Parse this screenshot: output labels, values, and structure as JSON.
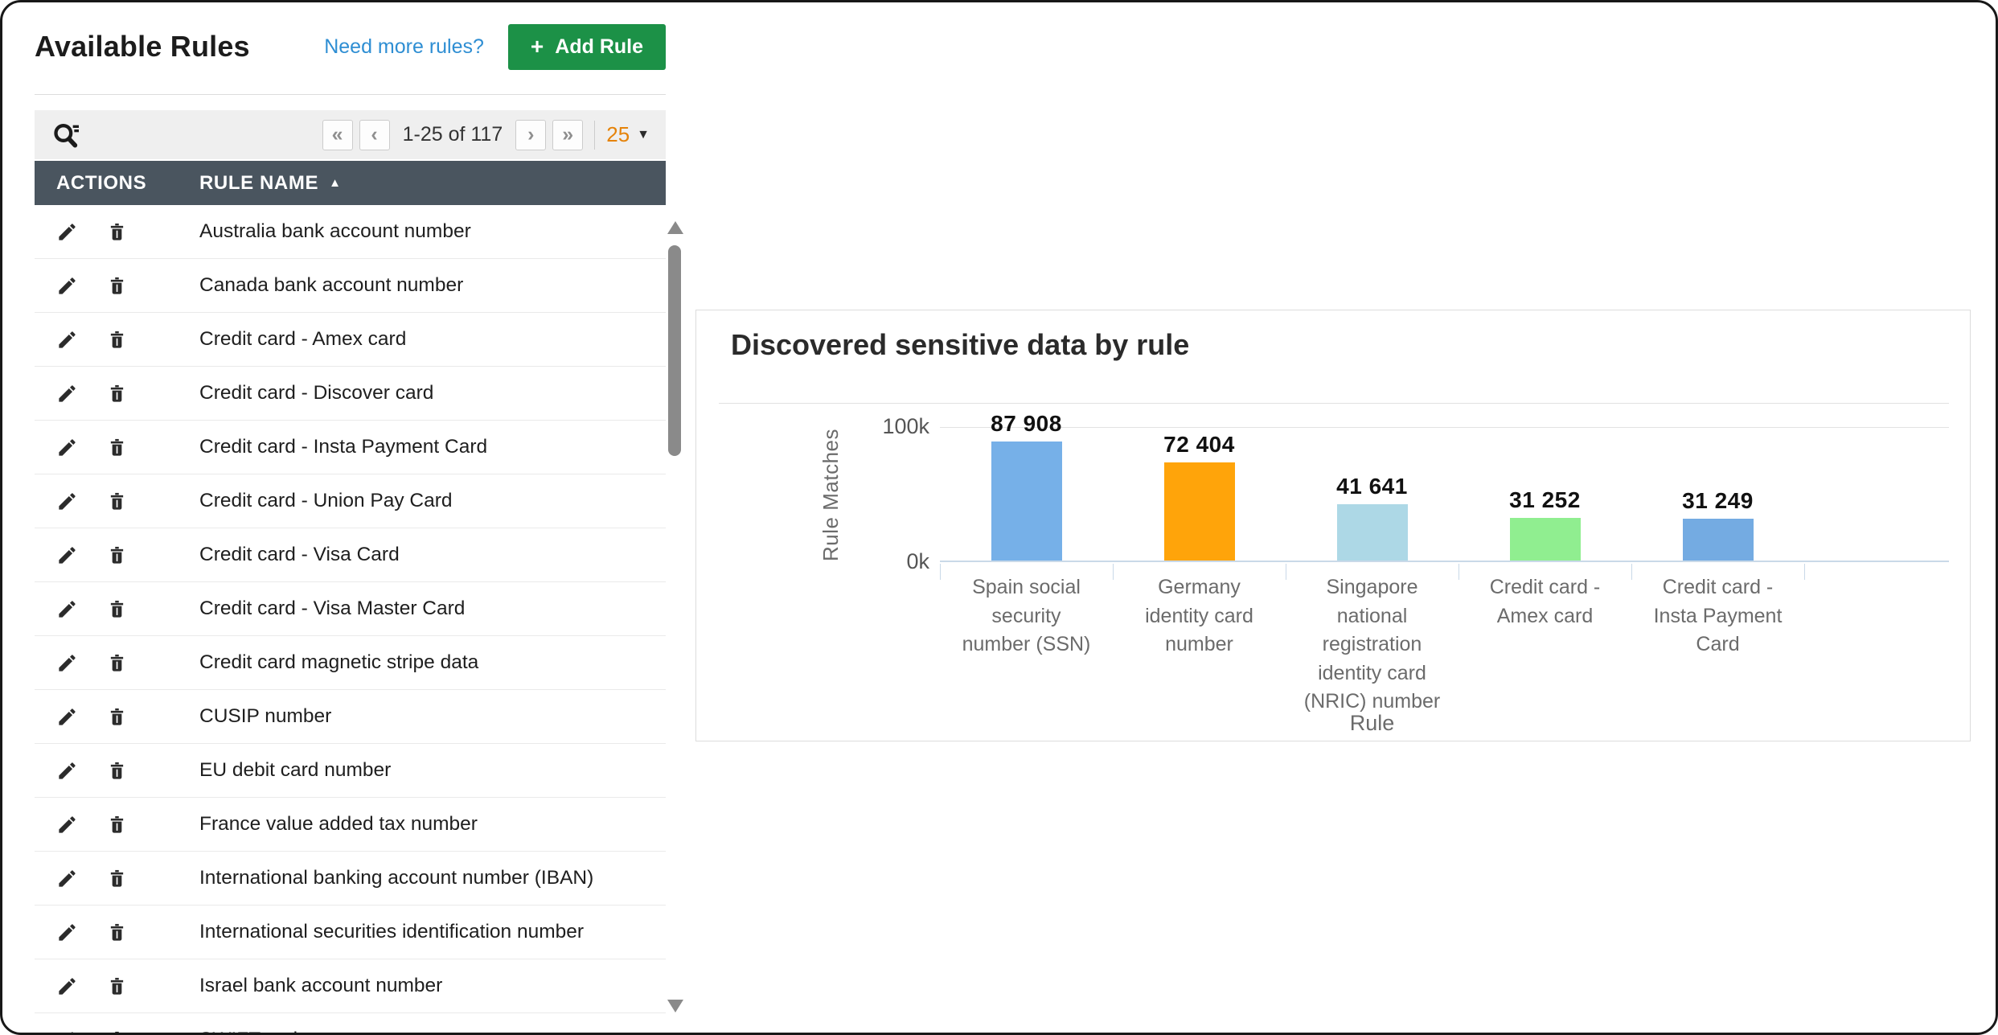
{
  "left_panel": {
    "title": "Available Rules",
    "need_more_link": "Need more rules?",
    "add_rule": {
      "label": "Add Rule",
      "plus": "+"
    },
    "toolbar": {
      "search_icon": "search-with-filter-icon",
      "pagination": {
        "first": "«",
        "prev": "‹",
        "range": "1-25 of 117",
        "next": "›",
        "last": "»"
      },
      "page_size": {
        "value": "25",
        "caret": "▼"
      }
    },
    "table": {
      "columns": {
        "actions": "ACTIONS",
        "rule_name": "RULE NAME"
      },
      "sort": {
        "column": "RULE NAME",
        "direction": "asc",
        "glyph": "▲"
      },
      "row_action_icons": [
        "edit-icon",
        "delete-icon"
      ],
      "rows": [
        "Australia bank account number",
        "Canada bank account number",
        "Credit card - Amex card",
        "Credit card - Discover card",
        "Credit card - Insta Payment Card",
        "Credit card - Union Pay Card",
        "Credit card - Visa Card",
        "Credit card - Visa Master Card",
        "Credit card magnetic stripe data",
        "CUSIP number",
        "EU debit card number",
        "France value added tax number",
        "International banking account number (IBAN)",
        "International securities identification number",
        "Israel bank account number",
        "SWIFT code"
      ]
    },
    "scrollbar": {
      "up": "▲",
      "down": "▼"
    }
  },
  "chart_panel": {
    "title": "Discovered sensitive data by rule"
  },
  "chart_data": {
    "type": "bar",
    "title": "Discovered sensitive data by rule",
    "categories": [
      "Spain social security number (SSN)",
      "Germany identity card number",
      "Singapore national registration identity card (NRIC) number",
      "Credit card - Amex card",
      "Credit card - Insta Payment Card"
    ],
    "values": [
      87908,
      72404,
      41641,
      31252,
      31249
    ],
    "value_labels": [
      "87 908",
      "72 404",
      "41 641",
      "31 252",
      "31 249"
    ],
    "bar_colors": [
      "#76b0e8",
      "#ffa40a",
      "#add8e6",
      "#90ee90",
      "#74abe2"
    ],
    "xlabel": "Rule",
    "ylabel": "Rule Matches",
    "yticks": [
      "100k",
      "0k"
    ],
    "ylim": [
      0,
      100000
    ],
    "grid": "horizontal gridline at 100k only",
    "legend": "none"
  },
  "colors": {
    "accent_green": "#1c9147",
    "link_blue": "#2e8ed3",
    "table_header_bg": "#4a555f",
    "page_size_orange": "#e5830a",
    "toolbar_bg": "#efefef",
    "axis_line": "#c9d9e8"
  }
}
